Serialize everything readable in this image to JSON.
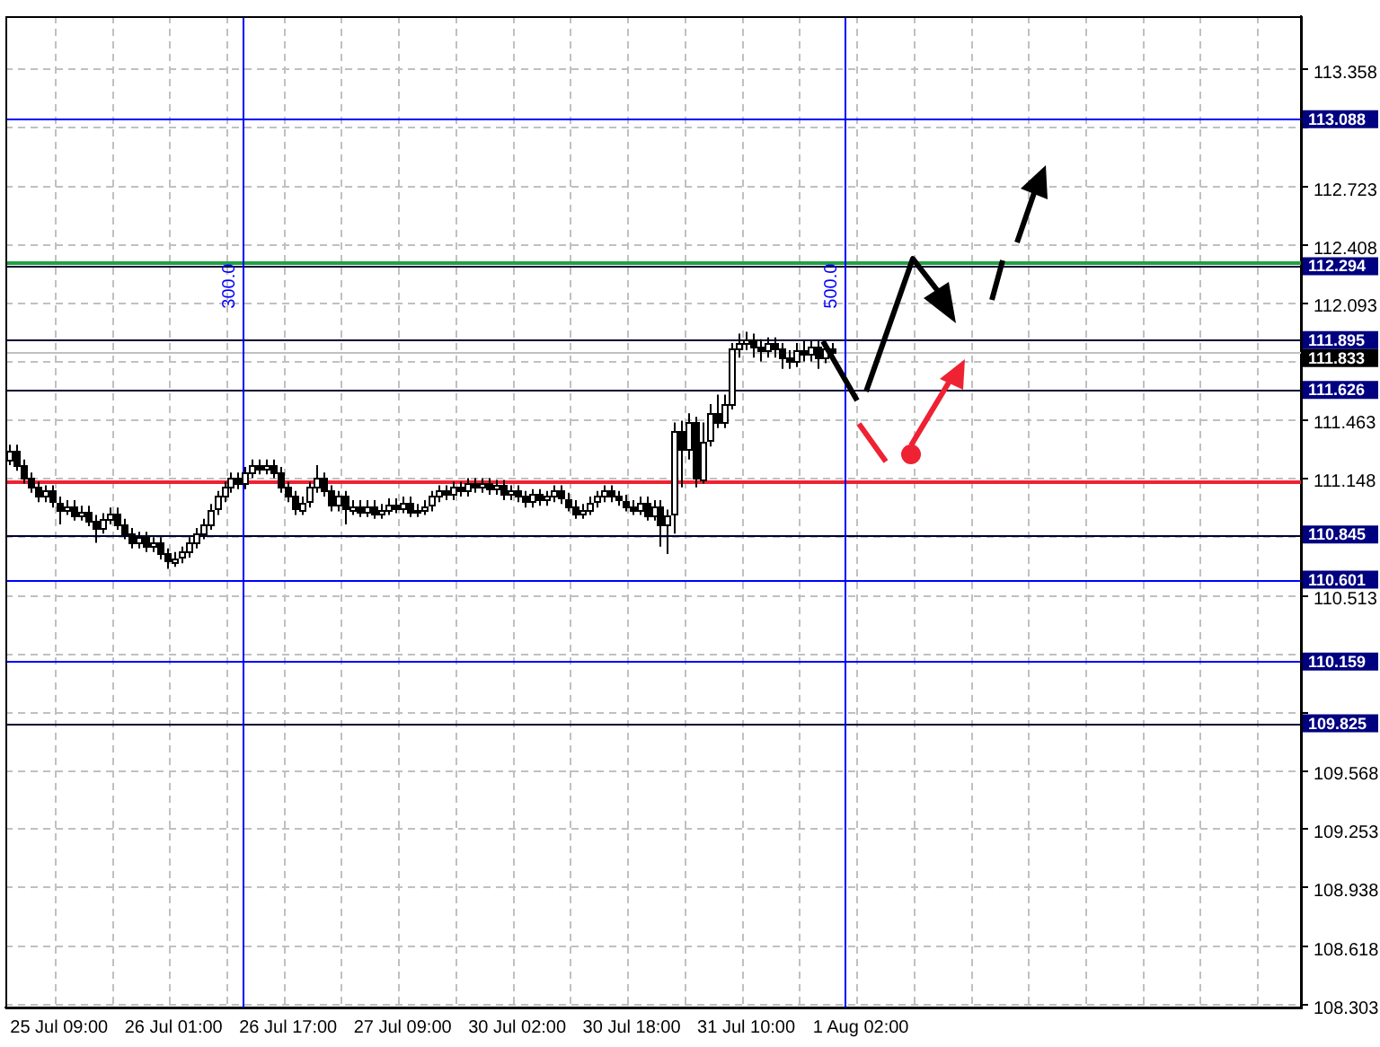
{
  "chart_data": {
    "type": "candlestick",
    "categories": [
      null,
      null,
      null,
      null,
      null,
      null,
      null,
      "25 Jul 09:00",
      null,
      null,
      null,
      null,
      null,
      null,
      null,
      null,
      null,
      null,
      null,
      null,
      null,
      null,
      null,
      "26 Jul 01:00",
      null,
      null,
      null,
      null,
      null,
      null,
      null,
      null,
      null,
      null,
      null,
      null,
      null,
      null,
      null,
      "26 Jul 17:00",
      null,
      null,
      null,
      null,
      null,
      null,
      null,
      null,
      null,
      null,
      null,
      null,
      null,
      null,
      null,
      "27 Jul 09:00",
      null,
      null,
      null,
      null,
      null,
      null,
      null,
      null,
      null,
      null,
      null,
      null,
      null,
      null,
      null,
      "30 Jul 02:00",
      null,
      null,
      null,
      null,
      null,
      null,
      null,
      null,
      null,
      null,
      null,
      null,
      null,
      null,
      null,
      "30 Jul 18:00",
      null,
      null,
      null,
      null,
      null,
      null,
      null,
      null,
      null,
      null,
      null,
      null,
      null,
      null,
      null,
      "31 Jul 10:00",
      null,
      null,
      null,
      null,
      null,
      null,
      null,
      null,
      null,
      null,
      null,
      null,
      null,
      null,
      null,
      "1 Aug 02:00",
      null,
      null,
      null,
      null,
      null,
      null,
      null,
      null,
      null,
      null,
      null,
      null,
      null,
      null,
      null,
      null,
      null,
      null,
      null,
      null,
      null,
      null,
      null,
      null,
      null,
      null,
      null,
      null,
      null,
      null,
      null,
      null,
      null,
      null,
      null,
      null,
      null,
      null,
      null,
      null,
      null,
      null,
      null,
      null,
      null,
      null,
      null,
      null,
      null,
      null,
      null,
      null,
      null,
      null,
      null,
      null,
      null,
      null,
      null,
      null,
      null
    ],
    "ohlc": [
      [
        111.25,
        111.33,
        111.22,
        111.3
      ],
      [
        111.3,
        111.33,
        111.19,
        111.22
      ],
      [
        111.22,
        111.25,
        111.12,
        111.15
      ],
      [
        111.15,
        111.18,
        111.07,
        111.1
      ],
      [
        111.1,
        111.13,
        111.02,
        111.05
      ],
      [
        111.05,
        111.11,
        111.02,
        111.08
      ],
      [
        111.08,
        111.11,
        110.99,
        111.02
      ],
      [
        111.02,
        111.05,
        110.9,
        110.98
      ],
      [
        110.98,
        111.03,
        110.95,
        111.0
      ],
      [
        111.0,
        111.03,
        110.92,
        110.95
      ],
      [
        110.95,
        111.0,
        110.92,
        110.97
      ],
      [
        110.97,
        111.0,
        110.89,
        110.92
      ],
      [
        110.92,
        110.95,
        110.8,
        110.88
      ],
      [
        110.88,
        110.96,
        110.85,
        110.93
      ],
      [
        110.93,
        110.99,
        110.9,
        110.96
      ],
      [
        110.96,
        110.99,
        110.87,
        110.9
      ],
      [
        110.9,
        110.93,
        110.82,
        110.85
      ],
      [
        110.85,
        110.88,
        110.77,
        110.8
      ],
      [
        110.8,
        110.86,
        110.77,
        110.83
      ],
      [
        110.83,
        110.86,
        110.75,
        110.78
      ],
      [
        110.78,
        110.83,
        110.75,
        110.8
      ],
      [
        110.8,
        110.83,
        110.71,
        110.74
      ],
      [
        110.74,
        110.77,
        110.66,
        110.7
      ],
      [
        110.7,
        110.75,
        110.67,
        110.72
      ],
      [
        110.72,
        110.78,
        110.69,
        110.75
      ],
      [
        110.75,
        110.83,
        110.72,
        110.8
      ],
      [
        110.8,
        110.88,
        110.77,
        110.85
      ],
      [
        110.85,
        110.93,
        110.82,
        110.9
      ],
      [
        110.9,
        111.01,
        110.87,
        110.98
      ],
      [
        110.98,
        111.08,
        110.95,
        111.05
      ],
      [
        111.05,
        111.13,
        111.02,
        111.1
      ],
      [
        111.1,
        111.18,
        111.07,
        111.15
      ],
      [
        111.15,
        111.18,
        111.09,
        111.12
      ],
      [
        111.12,
        111.21,
        111.09,
        111.18
      ],
      [
        111.18,
        111.25,
        111.15,
        111.22
      ],
      [
        111.22,
        111.25,
        111.17,
        111.2
      ],
      [
        111.2,
        111.25,
        111.17,
        111.22
      ],
      [
        111.22,
        111.25,
        111.15,
        111.18
      ],
      [
        111.18,
        111.21,
        111.07,
        111.1
      ],
      [
        111.1,
        111.13,
        111.02,
        111.05
      ],
      [
        111.05,
        111.08,
        110.95,
        110.98
      ],
      [
        110.98,
        111.05,
        110.95,
        111.02
      ],
      [
        111.02,
        111.13,
        110.99,
        111.1
      ],
      [
        111.1,
        111.22,
        111.07,
        111.15
      ],
      [
        111.15,
        111.18,
        111.05,
        111.08
      ],
      [
        111.08,
        111.11,
        110.97,
        111.0
      ],
      [
        111.0,
        111.08,
        110.97,
        111.05
      ],
      [
        111.05,
        111.08,
        110.9,
        110.98
      ],
      [
        110.98,
        111.03,
        110.95,
        111.0
      ],
      [
        111.0,
        111.03,
        110.94,
        110.97
      ],
      [
        110.97,
        111.03,
        110.94,
        111.0
      ],
      [
        111.0,
        111.03,
        110.93,
        110.96
      ],
      [
        110.96,
        111.01,
        110.93,
        110.98
      ],
      [
        110.98,
        111.04,
        110.95,
        111.01
      ],
      [
        111.01,
        111.04,
        110.96,
        110.99
      ],
      [
        110.99,
        111.05,
        110.96,
        111.02
      ],
      [
        111.02,
        111.05,
        110.94,
        110.97
      ],
      [
        110.97,
        111.01,
        110.94,
        110.98
      ],
      [
        110.98,
        111.03,
        110.95,
        111.0
      ],
      [
        111.0,
        111.08,
        110.97,
        111.05
      ],
      [
        111.05,
        111.11,
        111.02,
        111.08
      ],
      [
        111.08,
        111.11,
        111.03,
        111.06
      ],
      [
        111.06,
        111.13,
        111.03,
        111.1
      ],
      [
        111.1,
        111.13,
        111.05,
        111.08
      ],
      [
        111.08,
        111.15,
        111.05,
        111.12
      ],
      [
        111.12,
        111.15,
        111.07,
        111.1
      ],
      [
        111.1,
        111.15,
        111.07,
        111.12
      ],
      [
        111.12,
        111.15,
        111.06,
        111.09
      ],
      [
        111.09,
        111.14,
        111.06,
        111.11
      ],
      [
        111.11,
        111.14,
        111.03,
        111.06
      ],
      [
        111.06,
        111.11,
        111.03,
        111.08
      ],
      [
        111.08,
        111.11,
        111.02,
        111.05
      ],
      [
        111.05,
        111.08,
        110.99,
        111.02
      ],
      [
        111.02,
        111.09,
        110.99,
        111.06
      ],
      [
        111.06,
        111.09,
        111.0,
        111.03
      ],
      [
        111.03,
        111.08,
        111.0,
        111.05
      ],
      [
        111.05,
        111.11,
        111.02,
        111.08
      ],
      [
        111.08,
        111.11,
        111.01,
        111.04
      ],
      [
        111.04,
        111.07,
        110.97,
        111.0
      ],
      [
        111.0,
        111.03,
        110.93,
        110.96
      ],
      [
        110.96,
        111.01,
        110.93,
        110.98
      ],
      [
        110.98,
        111.05,
        110.95,
        111.02
      ],
      [
        111.02,
        111.08,
        110.99,
        111.05
      ],
      [
        111.05,
        111.11,
        111.02,
        111.08
      ],
      [
        111.08,
        111.11,
        111.02,
        111.05
      ],
      [
        111.05,
        111.08,
        111.0,
        111.03
      ],
      [
        111.03,
        111.06,
        110.97,
        111.0
      ],
      [
        111.0,
        111.03,
        110.95,
        110.98
      ],
      [
        110.98,
        111.05,
        110.95,
        111.02
      ],
      [
        111.02,
        111.05,
        110.92,
        110.95
      ],
      [
        110.95,
        111.03,
        110.92,
        111.0
      ],
      [
        111.0,
        111.03,
        110.78,
        110.9
      ],
      [
        110.9,
        110.98,
        110.74,
        110.95
      ],
      [
        110.95,
        111.45,
        110.85,
        111.4
      ],
      [
        111.4,
        111.46,
        111.1,
        111.3
      ],
      [
        111.3,
        111.5,
        111.25,
        111.45
      ],
      [
        111.45,
        111.48,
        111.1,
        111.15
      ],
      [
        111.15,
        111.45,
        111.12,
        111.35
      ],
      [
        111.35,
        111.55,
        111.32,
        111.5
      ],
      [
        111.5,
        111.6,
        111.42,
        111.45
      ],
      [
        111.45,
        111.6,
        111.42,
        111.55
      ],
      [
        111.55,
        111.88,
        111.52,
        111.85
      ],
      [
        111.85,
        111.93,
        111.8,
        111.88
      ],
      [
        111.88,
        111.94,
        111.84,
        111.9
      ],
      [
        111.9,
        111.93,
        111.8,
        111.86
      ],
      [
        111.86,
        111.9,
        111.78,
        111.84
      ],
      [
        111.84,
        111.91,
        111.8,
        111.88
      ],
      [
        111.88,
        111.91,
        111.8,
        111.85
      ],
      [
        111.85,
        111.88,
        111.74,
        111.8
      ],
      [
        111.8,
        111.84,
        111.74,
        111.78
      ],
      [
        111.78,
        111.88,
        111.75,
        111.84
      ],
      [
        111.84,
        111.89,
        111.78,
        111.82
      ],
      [
        111.82,
        111.89,
        111.78,
        111.86
      ],
      [
        111.86,
        111.89,
        111.74,
        111.8
      ],
      [
        111.8,
        111.88,
        111.77,
        111.85
      ],
      [
        111.85,
        111.88,
        111.8,
        111.83
      ],
      null,
      null,
      null,
      null,
      null,
      null,
      null,
      null,
      null,
      null,
      null,
      null,
      null,
      null,
      null,
      null,
      null,
      null,
      null,
      null,
      null,
      null,
      null,
      null,
      null,
      null,
      null,
      null,
      null,
      null,
      null,
      null,
      null,
      null,
      null,
      null,
      null,
      null,
      null,
      null,
      null,
      null,
      null,
      null,
      null,
      null,
      null,
      null,
      null,
      null,
      null,
      null,
      null,
      null,
      null,
      null,
      null,
      null,
      null,
      null,
      null,
      null,
      null,
      null,
      null
    ],
    "ylim": [
      108.29,
      113.645
    ],
    "yticks": [
      113.358,
      {
        "value": 113.043,
        "label": null
      },
      112.723,
      112.408,
      112.093,
      {
        "value": 111.778,
        "label": null
      },
      111.463,
      111.148,
      {
        "value": 110.833,
        "label": null
      },
      110.513,
      {
        "value": 110.198,
        "label": null
      },
      {
        "value": 109.883,
        "label": null
      },
      109.568,
      109.253,
      108.938,
      108.618,
      108.303
    ],
    "grid": true,
    "ref_lines": [
      {
        "axis": "y",
        "value": 113.088,
        "label": "113.088",
        "color": "#0000ff"
      },
      {
        "axis": "y",
        "value": 112.294,
        "label": "112.294",
        "color": "#000033"
      },
      {
        "axis": "y",
        "value": 111.895,
        "label": "111.895",
        "color": "#000033"
      },
      {
        "axis": "y",
        "value": 111.833,
        "label": "111.833",
        "color": "#c0c0c0"
      },
      {
        "axis": "y",
        "value": 111.626,
        "label": "111.626",
        "color": "#000033"
      },
      {
        "axis": "y",
        "value": 110.845,
        "label": "110.845",
        "color": "#000033"
      },
      {
        "axis": "y",
        "value": 110.601,
        "label": "110.601",
        "color": "#0000ff"
      },
      {
        "axis": "y",
        "value": 110.159,
        "label": "110.159",
        "color": "#0000ff"
      },
      {
        "axis": "y",
        "value": 109.825,
        "label": "109.825",
        "color": "#000033"
      },
      {
        "axis": "y",
        "value": 112.32,
        "color": "#22a045"
      },
      {
        "axis": "y",
        "value": 111.13,
        "color": "#ee2233"
      }
    ],
    "annotations": [
      "300.0",
      "500.0"
    ]
  }
}
